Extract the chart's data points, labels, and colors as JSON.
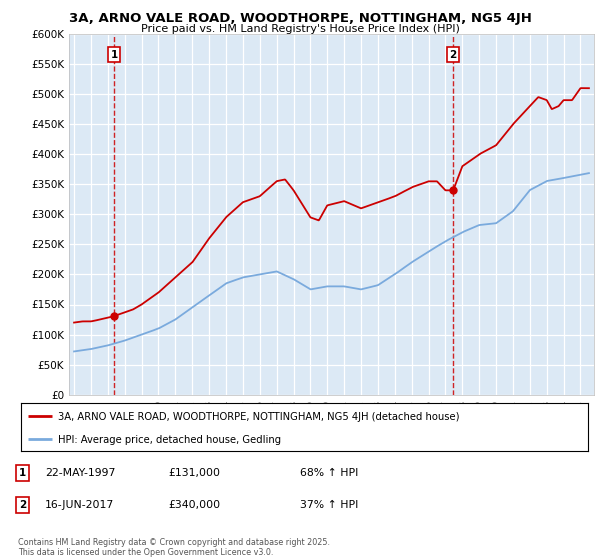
{
  "title_line1": "3A, ARNO VALE ROAD, WOODTHORPE, NOTTINGHAM, NG5 4JH",
  "title_line2": "Price paid vs. HM Land Registry's House Price Index (HPI)",
  "plot_bg_color": "#dce9f5",
  "ylabel_ticks": [
    "£0",
    "£50K",
    "£100K",
    "£150K",
    "£200K",
    "£250K",
    "£300K",
    "£350K",
    "£400K",
    "£450K",
    "£500K",
    "£550K",
    "£600K"
  ],
  "ytick_values": [
    0,
    50000,
    100000,
    150000,
    200000,
    250000,
    300000,
    350000,
    400000,
    450000,
    500000,
    550000,
    600000
  ],
  "xmin": 1994.7,
  "xmax": 2025.8,
  "ymin": 0,
  "ymax": 600000,
  "sale1_x": 1997.38,
  "sale1_y": 131000,
  "sale2_x": 2017.46,
  "sale2_y": 340000,
  "sale1_date": "22-MAY-1997",
  "sale1_price": "£131,000",
  "sale1_hpi": "68% ↑ HPI",
  "sale2_date": "16-JUN-2017",
  "sale2_price": "£340,000",
  "sale2_hpi": "37% ↑ HPI",
  "line_color_price": "#cc0000",
  "line_color_hpi": "#7aaadd",
  "vline_color": "#cc0000",
  "legend_label1": "3A, ARNO VALE ROAD, WOODTHORPE, NOTTINGHAM, NG5 4JH (detached house)",
  "legend_label2": "HPI: Average price, detached house, Gedling",
  "footer": "Contains HM Land Registry data © Crown copyright and database right 2025.\nThis data is licensed under the Open Government Licence v3.0.",
  "xticks": [
    1995,
    1996,
    1997,
    1998,
    1999,
    2000,
    2001,
    2002,
    2003,
    2004,
    2005,
    2006,
    2007,
    2008,
    2009,
    2010,
    2011,
    2012,
    2013,
    2014,
    2015,
    2016,
    2017,
    2018,
    2019,
    2020,
    2021,
    2022,
    2023,
    2024,
    2025
  ],
  "hpi_key_x": [
    1995.0,
    1996.0,
    1997.0,
    1998.0,
    1999.0,
    2000.0,
    2001.0,
    2002.0,
    2003.0,
    2004.0,
    2005.0,
    2006.0,
    2007.0,
    2008.0,
    2009.0,
    2010.0,
    2011.0,
    2012.0,
    2013.0,
    2014.0,
    2015.0,
    2016.0,
    2017.0,
    2018.0,
    2019.0,
    2020.0,
    2021.0,
    2022.0,
    2023.0,
    2024.0,
    2025.5
  ],
  "hpi_key_y": [
    72000,
    76000,
    82000,
    90000,
    100000,
    110000,
    125000,
    145000,
    165000,
    185000,
    195000,
    200000,
    205000,
    192000,
    175000,
    180000,
    180000,
    175000,
    182000,
    200000,
    220000,
    238000,
    255000,
    270000,
    282000,
    285000,
    305000,
    340000,
    355000,
    360000,
    368000
  ],
  "price_key_x": [
    1995.0,
    1995.5,
    1996.0,
    1996.5,
    1997.0,
    1997.38,
    1997.8,
    1998.5,
    1999.0,
    2000.0,
    2001.0,
    2002.0,
    2003.0,
    2004.0,
    2005.0,
    2006.0,
    2007.0,
    2007.5,
    2008.0,
    2009.0,
    2009.5,
    2010.0,
    2011.0,
    2012.0,
    2013.0,
    2014.0,
    2015.0,
    2016.0,
    2016.5,
    2017.0,
    2017.46,
    2018.0,
    2019.0,
    2020.0,
    2021.0,
    2022.0,
    2022.5,
    2023.0,
    2023.3,
    2023.7,
    2024.0,
    2024.5,
    2025.0,
    2025.5
  ],
  "price_key_y": [
    120000,
    122000,
    122000,
    125000,
    128000,
    131000,
    135000,
    142000,
    150000,
    170000,
    195000,
    220000,
    260000,
    295000,
    320000,
    330000,
    355000,
    358000,
    340000,
    295000,
    290000,
    315000,
    322000,
    310000,
    320000,
    330000,
    345000,
    355000,
    355000,
    340000,
    340000,
    380000,
    400000,
    415000,
    450000,
    480000,
    495000,
    490000,
    475000,
    480000,
    490000,
    490000,
    510000,
    510000
  ]
}
